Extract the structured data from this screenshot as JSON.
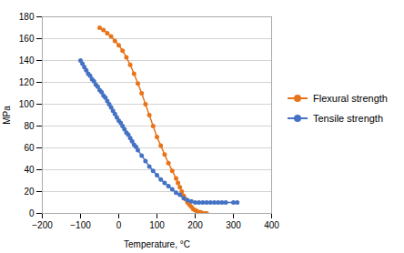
{
  "chart_data": {
    "type": "line",
    "xlabel": "Temperature, °C",
    "ylabel": "MPa",
    "xlim": [
      -200,
      400
    ],
    "ylim": [
      0,
      180
    ],
    "xticks": [
      -200,
      -100,
      0,
      100,
      200,
      300,
      400
    ],
    "yticks": [
      0,
      20,
      40,
      60,
      80,
      100,
      120,
      140,
      160,
      180
    ],
    "grid": "y",
    "legend": "right",
    "marker": "circle",
    "series": [
      {
        "name": "Flexural strength",
        "color": "#E8741A",
        "x": [
          -50,
          -40,
          -30,
          -20,
          -10,
          0,
          10,
          20,
          30,
          40,
          50,
          60,
          70,
          80,
          90,
          100,
          110,
          120,
          130,
          140,
          150,
          155,
          160,
          165,
          170,
          175,
          180,
          185,
          190,
          195,
          200,
          205,
          210,
          215,
          220,
          225,
          230
        ],
        "values": [
          170,
          168,
          165,
          162,
          158,
          154,
          149,
          143,
          136,
          128,
          119,
          110,
          100,
          90,
          80,
          70,
          62,
          54,
          46,
          39,
          32,
          28,
          24,
          20,
          16,
          13,
          10,
          8,
          6,
          4,
          3,
          2,
          1,
          1,
          0,
          0,
          0
        ]
      },
      {
        "name": "Tensile strength",
        "color": "#4472C4",
        "x": [
          -100,
          -95,
          -90,
          -85,
          -80,
          -75,
          -70,
          -65,
          -60,
          -55,
          -50,
          -45,
          -40,
          -35,
          -30,
          -25,
          -20,
          -15,
          -10,
          -5,
          0,
          5,
          10,
          15,
          20,
          25,
          30,
          35,
          40,
          45,
          50,
          60,
          70,
          80,
          90,
          100,
          110,
          120,
          130,
          140,
          150,
          160,
          170,
          180,
          190,
          200,
          210,
          220,
          230,
          240,
          250,
          260,
          270,
          280,
          300,
          310
        ],
        "values": [
          140,
          137,
          134,
          131,
          128,
          126,
          123,
          121,
          118,
          116,
          113,
          111,
          108,
          106,
          103,
          100,
          97,
          94,
          91,
          88,
          85,
          83,
          80,
          77,
          74,
          72,
          69,
          66,
          63,
          61,
          58,
          53,
          48,
          43,
          39,
          35,
          31,
          28,
          25,
          22,
          19,
          17,
          14,
          12,
          11,
          10,
          10,
          10,
          10,
          10,
          10,
          10,
          10,
          10,
          10,
          10
        ]
      }
    ]
  }
}
